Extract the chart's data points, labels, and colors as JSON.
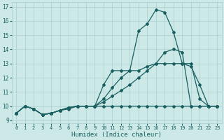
{
  "xlabel": "Humidex (Indice chaleur)",
  "bg_color": "#cce9e7",
  "grid_color": "#aacece",
  "line_color": "#1a6060",
  "xlim": [
    -0.5,
    23.5
  ],
  "ylim": [
    8.8,
    17.3
  ],
  "xticks": [
    0,
    1,
    2,
    3,
    4,
    5,
    6,
    7,
    8,
    9,
    10,
    11,
    12,
    13,
    14,
    15,
    16,
    17,
    18,
    19,
    20,
    21,
    22,
    23
  ],
  "yticks": [
    9,
    10,
    11,
    12,
    13,
    14,
    15,
    16,
    17
  ],
  "line1_x": [
    0,
    1,
    2,
    3,
    4,
    5,
    6,
    7,
    8,
    9,
    10,
    11,
    12,
    13,
    14,
    15,
    16,
    17,
    18,
    19,
    20,
    21,
    22,
    23
  ],
  "line1_y": [
    9.5,
    10.0,
    9.8,
    9.4,
    9.5,
    9.7,
    9.8,
    10.0,
    10.0,
    10.0,
    10.0,
    10.0,
    10.0,
    10.0,
    10.0,
    10.0,
    10.0,
    10.0,
    10.0,
    10.0,
    10.0,
    10.0,
    10.0,
    10.0
  ],
  "line2_x": [
    0,
    1,
    2,
    3,
    4,
    5,
    6,
    7,
    8,
    9,
    10,
    11,
    12,
    13,
    14,
    15,
    16,
    17,
    18,
    19,
    20,
    21,
    22,
    23
  ],
  "line2_y": [
    9.5,
    10.0,
    9.8,
    9.4,
    9.5,
    9.7,
    9.9,
    10.0,
    10.0,
    10.0,
    10.3,
    10.7,
    11.1,
    11.5,
    12.0,
    12.5,
    13.0,
    13.0,
    13.0,
    13.0,
    13.0,
    10.5,
    10.0,
    10.0
  ],
  "line3_x": [
    0,
    1,
    2,
    3,
    4,
    5,
    6,
    7,
    8,
    9,
    10,
    11,
    12,
    13,
    14,
    15,
    16,
    17,
    18,
    19,
    20,
    21,
    22,
    23
  ],
  "line3_y": [
    9.5,
    10.0,
    9.8,
    9.4,
    9.5,
    9.7,
    9.9,
    10.0,
    10.0,
    10.0,
    10.5,
    11.3,
    12.0,
    12.5,
    12.5,
    12.8,
    13.0,
    13.8,
    14.0,
    13.8,
    10.0,
    10.0,
    10.0,
    10.0
  ],
  "line4_x": [
    0,
    1,
    2,
    3,
    4,
    5,
    6,
    7,
    8,
    9,
    10,
    11,
    12,
    13,
    14,
    15,
    16,
    17,
    18,
    19,
    20,
    21,
    22,
    23
  ],
  "line4_y": [
    9.5,
    10.0,
    9.8,
    9.4,
    9.5,
    9.7,
    9.9,
    10.0,
    10.0,
    10.0,
    11.5,
    12.5,
    12.5,
    12.5,
    15.3,
    15.8,
    16.8,
    16.6,
    15.2,
    13.0,
    12.8,
    11.5,
    10.0,
    10.0
  ]
}
